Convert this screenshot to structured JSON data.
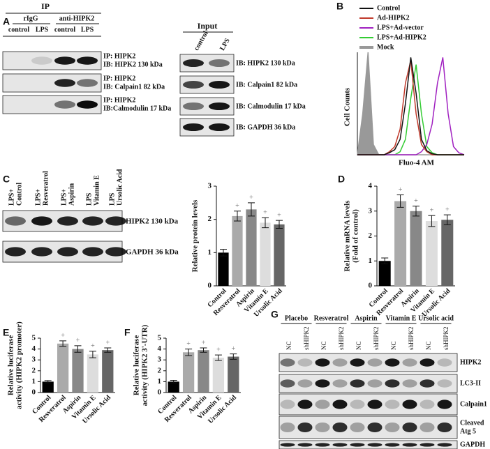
{
  "chart_data": [
    {
      "type": "line",
      "panel": "B",
      "xlabel": "Fluo-4 AM",
      "ylabel": "Cell Counts",
      "x": [
        0,
        5,
        10,
        15,
        20,
        25,
        30,
        35,
        40,
        45,
        50,
        55,
        60,
        65,
        70,
        75,
        80,
        85,
        90,
        95,
        100
      ],
      "xlim": [
        0,
        100
      ],
      "ylim": [
        0,
        100
      ],
      "series": [
        {
          "name": "Control",
          "color": "#111111",
          "values": [
            0,
            0,
            0,
            0,
            0,
            0,
            2,
            5,
            15,
            50,
            95,
            60,
            15,
            4,
            1,
            0,
            0,
            0,
            0,
            0,
            0
          ]
        },
        {
          "name": "Ad-HIPK2",
          "color": "#c0392b",
          "values": [
            0,
            0,
            0,
            0,
            0,
            0,
            3,
            8,
            25,
            70,
            92,
            40,
            10,
            3,
            0,
            0,
            0,
            0,
            0,
            0,
            0
          ]
        },
        {
          "name": "LPS+Ad-vector",
          "color": "#a020c0",
          "values": [
            0,
            0,
            0,
            0,
            0,
            0,
            0,
            0,
            0,
            0,
            0,
            0,
            3,
            10,
            30,
            70,
            95,
            40,
            8,
            2,
            0
          ]
        },
        {
          "name": "LPS+Ad-HIPK2",
          "color": "#33cc33",
          "values": [
            0,
            0,
            0,
            0,
            0,
            0,
            0,
            0,
            3,
            15,
            55,
            88,
            40,
            8,
            2,
            0,
            0,
            0,
            0,
            0,
            0
          ]
        },
        {
          "name": "Mock",
          "color": "#999999",
          "filled": true,
          "values": [
            0,
            40,
            100,
            10,
            0,
            0,
            0,
            0,
            0,
            0,
            0,
            0,
            0,
            0,
            0,
            0,
            0,
            0,
            0,
            0,
            0
          ]
        }
      ]
    },
    {
      "type": "bar",
      "panel": "C",
      "ylabel": [
        "Relative protein levels"
      ],
      "categories": [
        "Control",
        "Resveratrol",
        "Aspirin",
        "Vitamin E",
        "Ursolic Acid"
      ],
      "values": [
        1.0,
        2.1,
        2.3,
        1.9,
        1.85
      ],
      "errors": [
        0.1,
        0.15,
        0.2,
        0.15,
        0.12
      ],
      "significance": [
        null,
        "+",
        "+",
        "+",
        "+"
      ],
      "colors": [
        "#000000",
        "#aaaaaa",
        "#888888",
        "#dddddd",
        "#666666"
      ],
      "ylim": [
        0,
        3
      ],
      "yticks": [
        0,
        1,
        2,
        3
      ]
    },
    {
      "type": "bar",
      "panel": "D",
      "ylabel": [
        "Relative mRNA levels",
        "(Fold of control)"
      ],
      "categories": [
        "Control",
        "Resveratrol",
        "Aspirin",
        "Vitamin E",
        "Ursolic Acid"
      ],
      "values": [
        1.0,
        3.4,
        3.0,
        2.6,
        2.65
      ],
      "errors": [
        0.12,
        0.25,
        0.2,
        0.22,
        0.2
      ],
      "significance": [
        null,
        "+",
        "+",
        "+",
        "+"
      ],
      "colors": [
        "#000000",
        "#aaaaaa",
        "#888888",
        "#dddddd",
        "#666666"
      ],
      "ylim": [
        0,
        4
      ],
      "yticks": [
        0,
        1,
        2,
        3,
        4
      ]
    },
    {
      "type": "bar",
      "panel": "E",
      "ylabel": [
        "Relative luciferase",
        "activity (HIPK2 promoter)"
      ],
      "categories": [
        "Control",
        "Resveratrol",
        "Aspirin",
        "Vitamin E",
        "Ursolic Acid"
      ],
      "values": [
        1.0,
        4.5,
        4.0,
        3.5,
        3.9
      ],
      "errors": [
        0.1,
        0.25,
        0.3,
        0.3,
        0.2
      ],
      "significance": [
        null,
        "+",
        "+",
        "+",
        "+"
      ],
      "colors": [
        "#000000",
        "#aaaaaa",
        "#888888",
        "#dddddd",
        "#666666"
      ],
      "ylim": [
        0,
        5
      ],
      "yticks": [
        0,
        1,
        2,
        3,
        4,
        5
      ]
    },
    {
      "type": "bar",
      "panel": "F",
      "ylabel": [
        "Relative luciferase",
        "activity (HIPK2 3'-UTR)"
      ],
      "categories": [
        "Control",
        "Resveratrol",
        "Aspirin",
        "Vitamin E",
        "Ursolic Acid"
      ],
      "values": [
        1.0,
        3.7,
        3.9,
        3.2,
        3.3
      ],
      "errors": [
        0.12,
        0.3,
        0.2,
        0.25,
        0.25
      ],
      "significance": [
        null,
        "+",
        "+",
        "+",
        "+"
      ],
      "colors": [
        "#000000",
        "#aaaaaa",
        "#888888",
        "#dddddd",
        "#666666"
      ],
      "ylim": [
        0,
        5
      ],
      "yticks": [
        0,
        1,
        2,
        3,
        4,
        5
      ]
    }
  ],
  "blots": {
    "A": {
      "panel": "A",
      "ip_title": "IP",
      "ip_groups": [
        "rIgG",
        "anti-HIPK2"
      ],
      "ip_lanes": [
        "control",
        "LPS",
        "control",
        "LPS"
      ],
      "ip_blots": [
        [
          "IP: HIPK2",
          "IB: HIPK2 130 kDa"
        ],
        [
          "IP: HIPK2",
          "IB: Calpain1 82 kDa"
        ],
        [
          "IP: HIPK2",
          "IB:Calmodulin 17 kDa"
        ]
      ],
      "input_title": "Input",
      "input_lanes": [
        "control",
        "LPS"
      ],
      "input_blots": [
        "IB: HIPK2 130 kDa",
        "IB: Calpain1 82 kDa",
        "IB: Calmodulin 17 kDa",
        "IB: GAPDH 36 kDa"
      ]
    },
    "C": {
      "lanes": [
        [
          "LPS+",
          "Control"
        ],
        [
          "LPS+",
          "Resveratrol"
        ],
        [
          "LPS+",
          "Aspirin"
        ],
        [
          "LPS",
          "Vitamin E"
        ],
        [
          "LPS",
          "Ursolic Acid"
        ]
      ],
      "rows": [
        "HIPK2  130 kDa",
        "GAPDH 36 kDa"
      ]
    },
    "G": {
      "panel": "G",
      "groups": [
        "Placebo",
        "Resveratrol",
        "Aspirin",
        "Vitamin E",
        "Ursolic acid"
      ],
      "lanes": [
        "NC",
        "shHIPK2"
      ],
      "rows": [
        [
          "HIPK2"
        ],
        [
          "LC3-II"
        ],
        [
          "Calpain1"
        ],
        [
          "Cleaved",
          "Atg 5"
        ],
        [
          "GAPDH"
        ]
      ]
    }
  }
}
